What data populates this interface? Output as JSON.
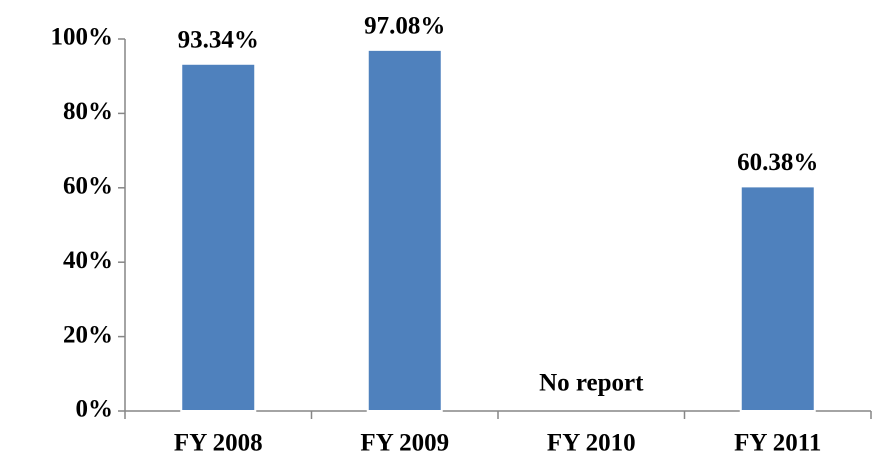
{
  "chart_data": {
    "type": "bar",
    "categories": [
      "FY 2008",
      "FY 2009",
      "FY 2010",
      "FY 2011"
    ],
    "values": [
      93.34,
      97.08,
      null,
      60.38
    ],
    "value_labels": [
      "93.34%",
      "97.08%",
      null,
      "60.38%"
    ],
    "color": "#4f81bd",
    "ylim": [
      0,
      100
    ],
    "yticks": [
      {
        "value": 0,
        "label": "0%"
      },
      {
        "value": 20,
        "label": "20%"
      },
      {
        "value": 40,
        "label": "40%"
      },
      {
        "value": 60,
        "label": "60%"
      },
      {
        "value": 80,
        "label": "80%"
      },
      {
        "value": 100,
        "label": "100%"
      }
    ],
    "grid": false,
    "annotations": [
      {
        "text": "No report",
        "x": "FY 2010"
      }
    ]
  }
}
